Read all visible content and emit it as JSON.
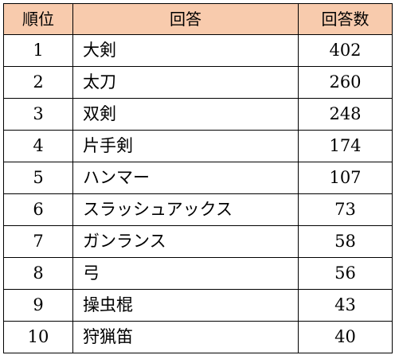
{
  "table": {
    "header": {
      "rank": "順位",
      "answer": "回答",
      "count": "回答数"
    },
    "header_bg_color": "#f8cbad",
    "rows": [
      {
        "rank": "1",
        "answer": "大剣",
        "count": "402"
      },
      {
        "rank": "2",
        "answer": "太刀",
        "count": "260"
      },
      {
        "rank": "3",
        "answer": "双剣",
        "count": "248"
      },
      {
        "rank": "4",
        "answer": "片手剣",
        "count": "174"
      },
      {
        "rank": "5",
        "answer": "ハンマー",
        "count": "107"
      },
      {
        "rank": "6",
        "answer": "スラッシュアックス",
        "count": "73"
      },
      {
        "rank": "7",
        "answer": "ガンランス",
        "count": "58"
      },
      {
        "rank": "8",
        "answer": "弓",
        "count": "56"
      },
      {
        "rank": "9",
        "answer": "操虫棍",
        "count": "43"
      },
      {
        "rank": "10",
        "answer": "狩猟笛",
        "count": "40"
      }
    ]
  }
}
